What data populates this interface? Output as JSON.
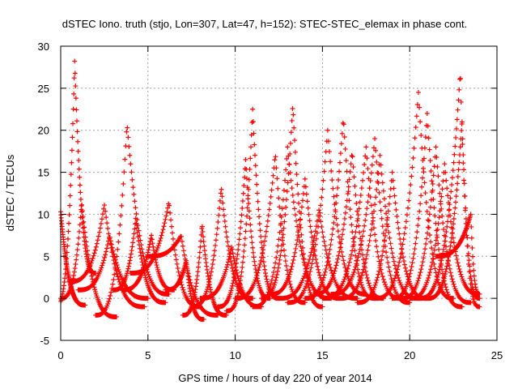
{
  "chart_data": {
    "type": "scatter",
    "title": "dSTEC Iono. truth (stjo, Lon=307, Lat=47, h=152): STEC-STEC_elemax in phase cont.",
    "xlabel": "GPS time / hours of day 220 of year 2014",
    "ylabel": "dSTEC  / TECUs",
    "xlim": [
      0,
      25
    ],
    "ylim": [
      -5,
      30
    ],
    "xticks": [
      "0",
      "5",
      "10",
      "15",
      "20",
      "25"
    ],
    "yticks": [
      "-5",
      "0",
      "5",
      "10",
      "15",
      "20",
      "25",
      "30"
    ],
    "grid": true,
    "legend": "none",
    "marker": "+",
    "series": [
      {
        "color": "#ff0000",
        "arcs": [
          {
            "start": 0.0,
            "peak_at": 0.0,
            "end": 1.4,
            "y_start": 10.3,
            "y_peak": 10.3,
            "y_end": -0.8
          },
          {
            "start": -0.3,
            "peak_at": 0.8,
            "end": 2.0,
            "y_start": -1.0,
            "y_peak": 28.3,
            "y_end": 3.0
          },
          {
            "start": 0.0,
            "peak_at": 1.2,
            "end": 3.2,
            "y_start": 0.0,
            "y_peak": 11.3,
            "y_end": -2.2
          },
          {
            "start": 0.5,
            "peak_at": 2.5,
            "end": 4.8,
            "y_start": 2.0,
            "y_peak": 11.2,
            "y_end": -1.0
          },
          {
            "start": 1.0,
            "peak_at": 2.8,
            "end": 5.0,
            "y_start": 1.0,
            "y_peak": 7.5,
            "y_end": 0.0
          },
          {
            "start": 2.0,
            "peak_at": 3.8,
            "end": 6.2,
            "y_start": -2.0,
            "y_peak": 20.8,
            "y_end": 0.5
          },
          {
            "start": 3.0,
            "peak_at": 4.3,
            "end": 6.0,
            "y_start": 1.0,
            "y_peak": 9.5,
            "y_end": -0.5
          },
          {
            "start": 3.5,
            "peak_at": 5.2,
            "end": 6.5,
            "y_start": 1.0,
            "y_peak": 7.5,
            "y_end": 1.0
          },
          {
            "start": 4.0,
            "peak_at": 6.2,
            "end": 8.0,
            "y_start": 3.0,
            "y_peak": 11.5,
            "y_end": -1.0
          },
          {
            "start": 5.0,
            "peak_at": 6.9,
            "end": 9.0,
            "y_start": 5.0,
            "y_peak": 7.5,
            "y_end": -2.0
          },
          {
            "start": 6.0,
            "peak_at": 7.2,
            "end": 8.2,
            "y_start": 1.0,
            "y_peak": 4.5,
            "y_end": -2.5
          },
          {
            "start": 7.0,
            "peak_at": 8.1,
            "end": 9.5,
            "y_start": -2.0,
            "y_peak": 8.8,
            "y_end": -2.0
          },
          {
            "start": 7.5,
            "peak_at": 9.2,
            "end": 11.0,
            "y_start": -1.0,
            "y_peak": 13.2,
            "y_end": 0.0
          },
          {
            "start": 8.0,
            "peak_at": 9.8,
            "end": 11.5,
            "y_start": 0.0,
            "y_peak": 6.2,
            "y_end": -1.0
          },
          {
            "start": 9.0,
            "peak_at": 10.6,
            "end": 12.0,
            "y_start": -1.0,
            "y_peak": 16.5,
            "y_end": 0.0
          },
          {
            "start": 9.5,
            "peak_at": 11.0,
            "end": 12.5,
            "y_start": -1.5,
            "y_peak": 22.5,
            "y_end": 0.0
          },
          {
            "start": 10.0,
            "peak_at": 12.3,
            "end": 14.0,
            "y_start": 0.0,
            "y_peak": 17.2,
            "y_end": -0.5
          },
          {
            "start": 11.0,
            "peak_at": 13.0,
            "end": 15.5,
            "y_start": -1.0,
            "y_peak": 18.0,
            "y_end": 0.0
          },
          {
            "start": 11.5,
            "peak_at": 13.3,
            "end": 15.0,
            "y_start": 0.0,
            "y_peak": 23.0,
            "y_end": -1.0
          },
          {
            "start": 12.0,
            "peak_at": 14.0,
            "end": 16.0,
            "y_start": 0.5,
            "y_peak": 14.2,
            "y_end": 0.0
          },
          {
            "start": 12.5,
            "peak_at": 14.8,
            "end": 17.0,
            "y_start": 0.0,
            "y_peak": 10.5,
            "y_end": 0.0
          },
          {
            "start": 13.0,
            "peak_at": 15.3,
            "end": 17.5,
            "y_start": -0.5,
            "y_peak": 20.0,
            "y_end": 0.5
          },
          {
            "start": 14.0,
            "peak_at": 16.2,
            "end": 18.0,
            "y_start": 0.0,
            "y_peak": 21.5,
            "y_end": 0.0
          },
          {
            "start": 14.5,
            "peak_at": 16.7,
            "end": 18.5,
            "y_start": 0.5,
            "y_peak": 17.5,
            "y_end": 0.0
          },
          {
            "start": 15.0,
            "peak_at": 17.5,
            "end": 19.5,
            "y_start": 0.0,
            "y_peak": 18.0,
            "y_end": 0.0
          },
          {
            "start": 15.5,
            "peak_at": 18.0,
            "end": 20.0,
            "y_start": 0.5,
            "y_peak": 19.0,
            "y_end": -0.5
          },
          {
            "start": 16.0,
            "peak_at": 18.3,
            "end": 20.5,
            "y_start": 0.0,
            "y_peak": 17.0,
            "y_end": 0.0
          },
          {
            "start": 17.0,
            "peak_at": 19.0,
            "end": 21.0,
            "y_start": -0.5,
            "y_peak": 15.0,
            "y_end": 0.0
          },
          {
            "start": 18.0,
            "peak_at": 20.5,
            "end": 22.5,
            "y_start": 0.0,
            "y_peak": 24.5,
            "y_end": 0.0
          },
          {
            "start": 19.0,
            "peak_at": 21.0,
            "end": 23.0,
            "y_start": 0.0,
            "y_peak": 22.0,
            "y_end": -1.0
          },
          {
            "start": 19.5,
            "peak_at": 21.5,
            "end": 23.5,
            "y_start": 0.0,
            "y_peak": 18.0,
            "y_end": -0.5
          },
          {
            "start": 20.0,
            "peak_at": 22.0,
            "end": 24.0,
            "y_start": 0.0,
            "y_peak": 16.0,
            "y_end": 0.5
          },
          {
            "start": 20.5,
            "peak_at": 22.9,
            "end": 24.0,
            "y_start": 0.0,
            "y_peak": 27.0,
            "y_end": -1.0
          },
          {
            "start": 21.0,
            "peak_at": 23.0,
            "end": 24.0,
            "y_start": 0.0,
            "y_peak": 21.0,
            "y_end": 0.0
          },
          {
            "start": 21.5,
            "peak_at": 23.5,
            "end": 24.0,
            "y_start": 5.0,
            "y_peak": 10.0,
            "y_end": 0.5
          }
        ]
      }
    ]
  }
}
